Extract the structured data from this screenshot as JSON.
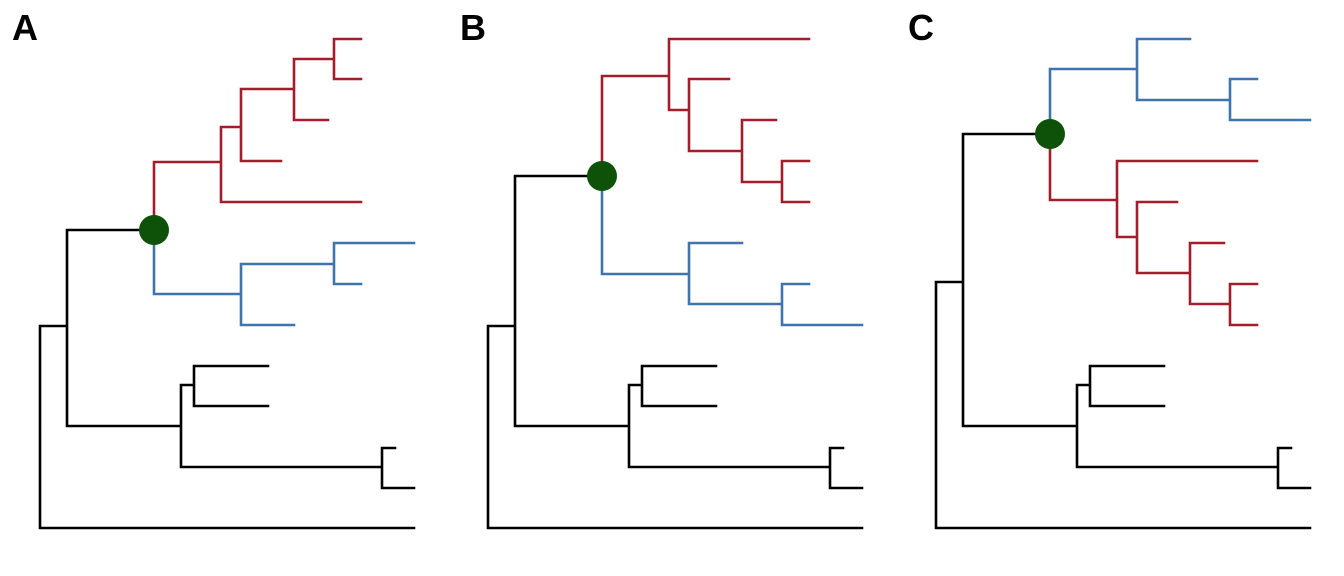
{
  "colors": {
    "red_clade": "#a31d2a",
    "blue_clade": "#3f74ad",
    "black": "#000000",
    "node_marker": "#0d5208"
  },
  "panels": [
    {
      "label": "A"
    },
    {
      "label": "B"
    },
    {
      "label": "C"
    }
  ]
}
